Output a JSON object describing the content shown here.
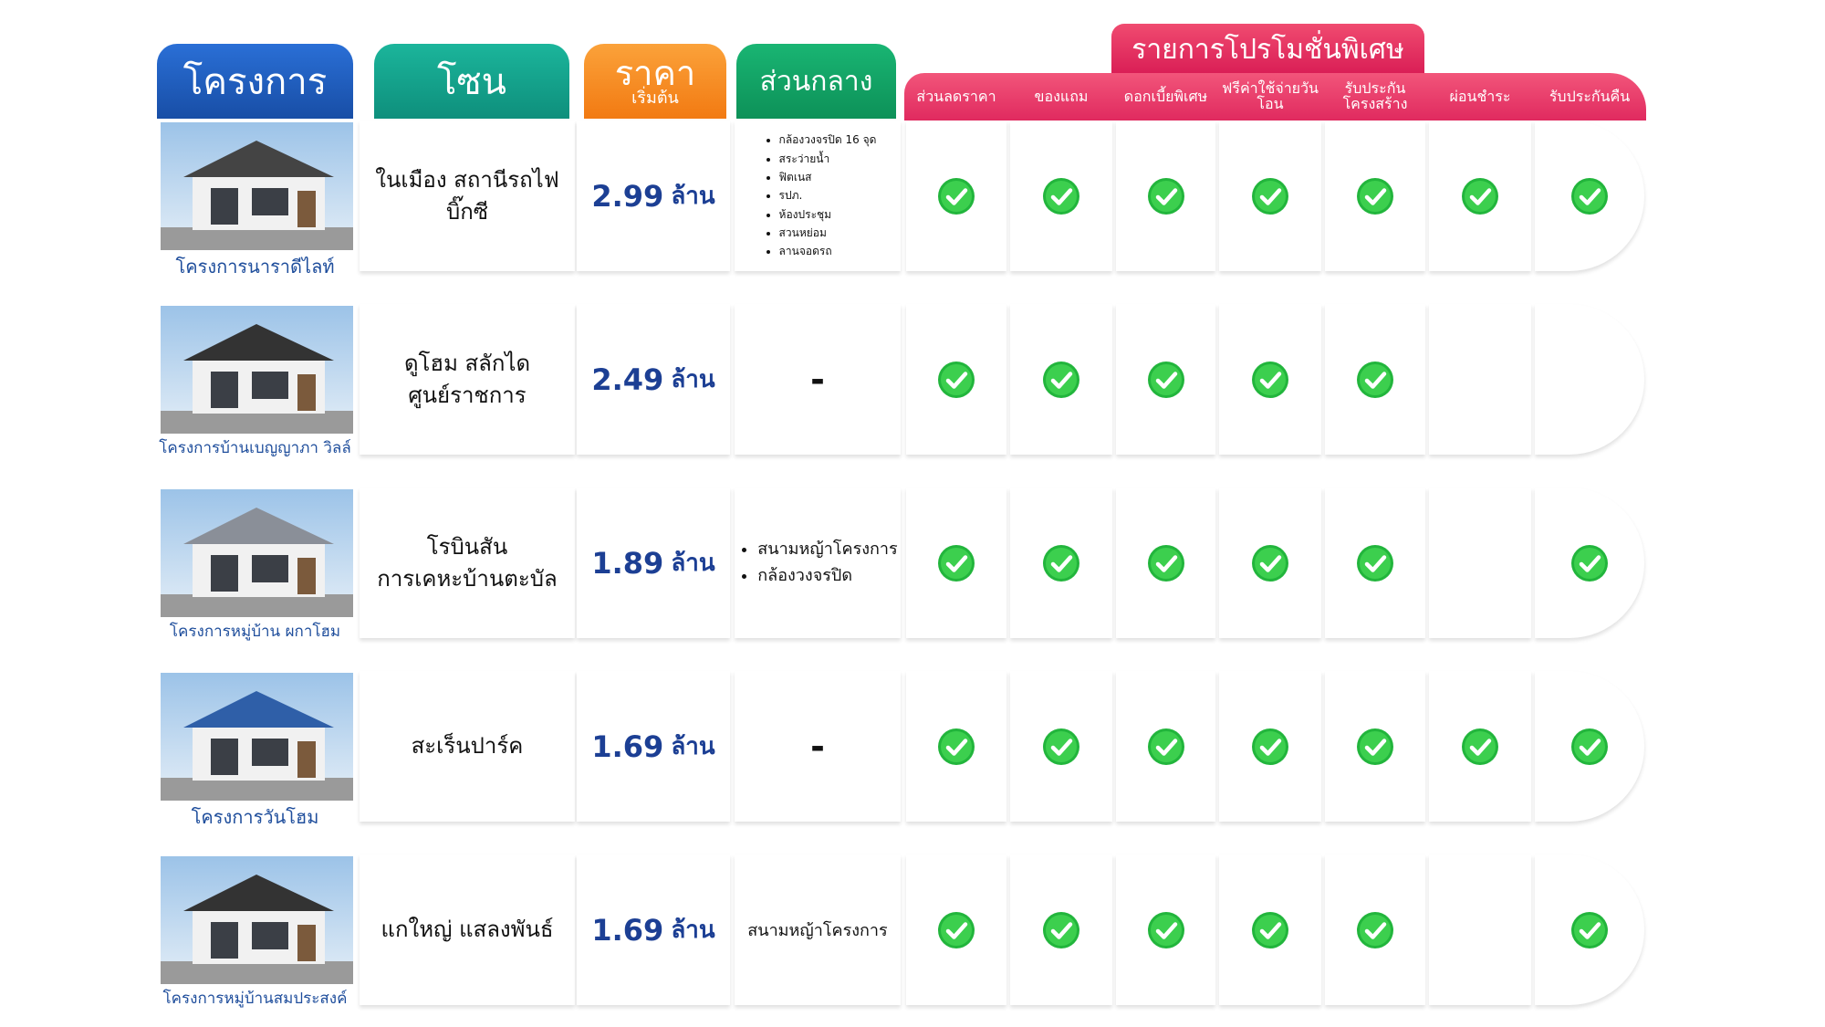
{
  "header": {
    "project": "โครงการ",
    "zone": "โซน",
    "price": "ราคา",
    "price_sub": "เริ่มต้น",
    "amenities": "ส่วนกลาง"
  },
  "promo_title": "รายการโปรโมชั่นพิเศษ",
  "promo_columns": [
    "ส่วนลดราคา",
    "ของแถม",
    "ดอกเบี้ยพิเศษ",
    "ฟรีค่าใช้จ่ายวันโอน",
    "รับประกัน\nโครงสร้าง",
    "ผ่อนชำระ",
    "รับประกันคืน"
  ],
  "rows": [
    {
      "project": "โครงการนาราดีไลท์",
      "zone": "ในเมือง สถานีรถไฟ บิ๊กซี",
      "price": "2.99",
      "price_unit": "ล้าน",
      "amenities": [
        "กล้องวงจรปิด 16 จุด",
        "สระว่ายน้ำ",
        "ฟิตเนส",
        "รปภ.",
        "ห้องประชุม",
        "สวนหย่อม",
        "ลานจอดรถ"
      ],
      "promos": [
        true,
        true,
        true,
        true,
        true,
        true,
        true
      ]
    },
    {
      "project": "โครงการบ้านเบญญาภา วิลล์",
      "zone": "ดูโฮม สลักได\nศูนย์ราชการ",
      "price": "2.49",
      "price_unit": "ล้าน",
      "amenities": "-",
      "promos": [
        true,
        true,
        true,
        true,
        true,
        false,
        false
      ]
    },
    {
      "project": "โครงการหมู่บ้าน ผกาโฮม",
      "zone": "โรบินสัน\nการเคหะบ้านตะบัล",
      "price": "1.89",
      "price_unit": "ล้าน",
      "amenities": [
        "สนามหญ้าโครงการ",
        "กล้องวงจรปิด"
      ],
      "promos": [
        true,
        true,
        true,
        true,
        true,
        false,
        true
      ]
    },
    {
      "project": "โครงการวันโฮม",
      "zone": "สะเร็นปาร์ค",
      "price": "1.69",
      "price_unit": "ล้าน",
      "amenities": "-",
      "promos": [
        true,
        true,
        true,
        true,
        true,
        true,
        true
      ]
    },
    {
      "project": "โครงการหมู่บ้านสมประสงค์",
      "zone": "แกใหญ่ แสลงพันธ์",
      "price": "1.69",
      "price_unit": "ล้าน",
      "amenities": "สนามหญ้าโครงการ",
      "promos": [
        true,
        true,
        true,
        true,
        true,
        false,
        true
      ]
    }
  ]
}
